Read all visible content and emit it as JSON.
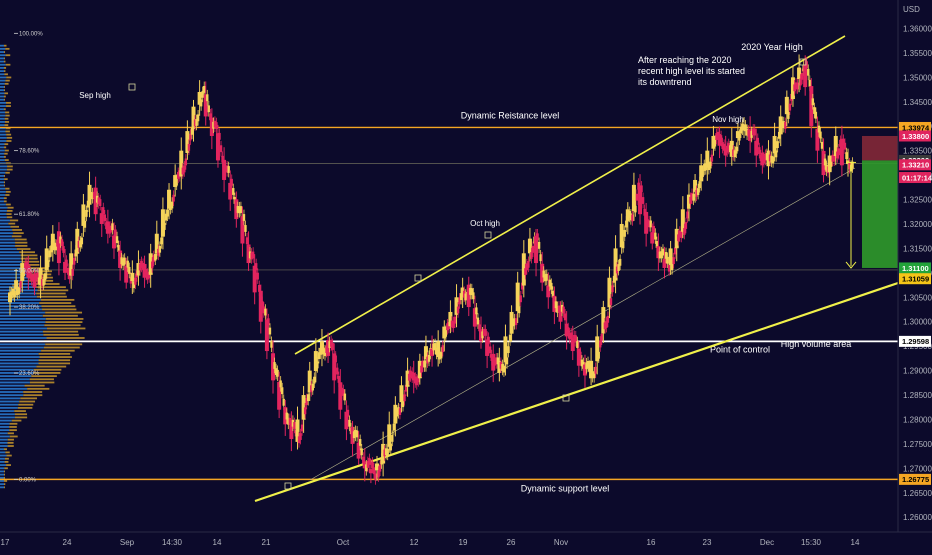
{
  "chart_data": {
    "type": "candlestick",
    "currency": "USD",
    "y_axis": {
      "ticks": [
        "1.36000",
        "1.35500",
        "1.35000",
        "1.34500",
        "1.34000",
        "1.33500",
        "1.33000",
        "1.32500",
        "1.32000",
        "1.31500",
        "1.31000",
        "1.30500",
        "1.30000",
        "1.29500",
        "1.29000",
        "1.28500",
        "1.28000",
        "1.27500",
        "1.27000",
        "1.26500",
        "1.26000"
      ],
      "ylim": [
        1.2578,
        1.365
      ]
    },
    "x_axis": {
      "ticks": [
        "17",
        "24",
        "Sep",
        "14:30",
        "14",
        "21",
        "Oct",
        "12",
        "19",
        "26",
        "Nov",
        "16",
        "23",
        "Dec",
        "15:30",
        "14"
      ]
    },
    "horizontal_levels": [
      {
        "name": "dynamic-resistance",
        "price": 1.33974,
        "color": "#f5a623",
        "label": "Dynamic Reistance level"
      },
      {
        "name": "fib-78",
        "price": 1.3324,
        "color": "#6b6b5a",
        "label": ""
      },
      {
        "name": "fib-38",
        "price": 1.31059,
        "color": "#6b6b5a",
        "label": ""
      },
      {
        "name": "point-of-control",
        "price": 1.29598,
        "color": "#ffffff",
        "label": "Point of control"
      },
      {
        "name": "dynamic-support",
        "price": 1.26775,
        "color": "#f5a623",
        "label": "Dynamic support level"
      }
    ],
    "price_tags": [
      {
        "text": "1.33974",
        "price": 1.33974,
        "bg": "#f5a623",
        "fg": "#000000"
      },
      {
        "text": "1.33800",
        "price": 1.338,
        "bg": "#e0245e",
        "fg": "#ffffff"
      },
      {
        "text": "1.33300",
        "price": 1.333,
        "bg": "#3a3a3a",
        "fg": "#ffffff"
      },
      {
        "text": "1.33210",
        "price": 1.3321,
        "bg": "#e0245e",
        "fg": "#ffffff"
      },
      {
        "text": "01:17:14",
        "price": 1.3295,
        "bg": "#e0245e",
        "fg": "#ffffff"
      },
      {
        "text": "1.31100",
        "price": 1.311,
        "bg": "#22a33a",
        "fg": "#ffffff"
      },
      {
        "text": "1.31059",
        "price": 1.3088,
        "bg": "#f5c518",
        "fg": "#000000"
      },
      {
        "text": "1.29598",
        "price": 1.29598,
        "bg": "#ffffff",
        "fg": "#000000"
      },
      {
        "text": "1.26775",
        "price": 1.26775,
        "bg": "#f5a623",
        "fg": "#000000"
      }
    ],
    "fib_labels": [
      {
        "text": "100.00%",
        "price": 1.359
      },
      {
        "text": "78.60%",
        "price": 1.335
      },
      {
        "text": "61.80%",
        "price": 1.322
      },
      {
        "text": "50.00%",
        "price": 1.3105
      },
      {
        "text": "38.20%",
        "price": 1.303
      },
      {
        "text": "23.60%",
        "price": 1.2895
      },
      {
        "text": "0.00%",
        "price": 1.26775
      }
    ],
    "annotations": [
      {
        "text": "Sep high"
      },
      {
        "text": "Oct high"
      },
      {
        "text": "Nov high"
      },
      {
        "text": "2020 Year High"
      },
      {
        "text": "After reaching the 2020"
      },
      {
        "text": "recent high level its started"
      },
      {
        "text": "its downtrend"
      },
      {
        "text": "High volume area"
      }
    ],
    "trade_box": {
      "entry": 1.333,
      "stop": 1.338,
      "target": 1.311
    },
    "series": [
      {
        "name": "",
        "ohlc_close": [
          1.306,
          1.3085,
          1.312,
          1.309,
          1.307,
          1.311,
          1.315,
          1.318,
          1.312,
          1.31,
          1.314,
          1.319,
          1.324,
          1.328,
          1.322,
          1.32,
          1.318,
          1.315,
          1.311,
          1.308,
          1.31,
          1.312,
          1.309,
          1.314,
          1.318,
          1.323,
          1.327,
          1.33,
          1.335,
          1.339,
          1.344,
          1.347,
          1.342,
          1.338,
          1.333,
          1.329,
          1.325,
          1.321,
          1.316,
          1.312,
          1.306,
          1.3,
          1.294,
          1.288,
          1.282,
          1.279,
          1.276,
          1.28,
          1.285,
          1.29,
          1.294,
          1.296,
          1.293,
          1.288,
          1.282,
          1.278,
          1.275,
          1.272,
          1.27,
          1.269,
          1.271,
          1.275,
          1.279,
          1.283,
          1.287,
          1.29,
          1.288,
          1.292,
          1.295,
          1.293,
          1.296,
          1.299,
          1.302,
          1.305,
          1.307,
          1.303,
          1.299,
          1.296,
          1.293,
          1.29,
          1.292,
          1.297,
          1.302,
          1.308,
          1.314,
          1.317,
          1.312,
          1.308,
          1.305,
          1.302,
          1.3,
          1.297,
          1.294,
          1.291,
          1.289,
          1.292,
          1.297,
          1.303,
          1.309,
          1.315,
          1.32,
          1.323,
          1.328,
          1.322,
          1.318,
          1.316,
          1.313,
          1.311,
          1.315,
          1.319,
          1.323,
          1.326,
          1.329,
          1.332,
          1.335,
          1.338,
          1.336,
          1.334,
          1.337,
          1.339,
          1.34,
          1.337,
          1.334,
          1.332,
          1.335,
          1.338,
          1.342,
          1.346,
          1.35,
          1.352,
          1.348,
          1.34,
          1.335,
          1.33,
          1.334,
          1.338,
          1.332,
          1.333
        ]
      }
    ]
  }
}
